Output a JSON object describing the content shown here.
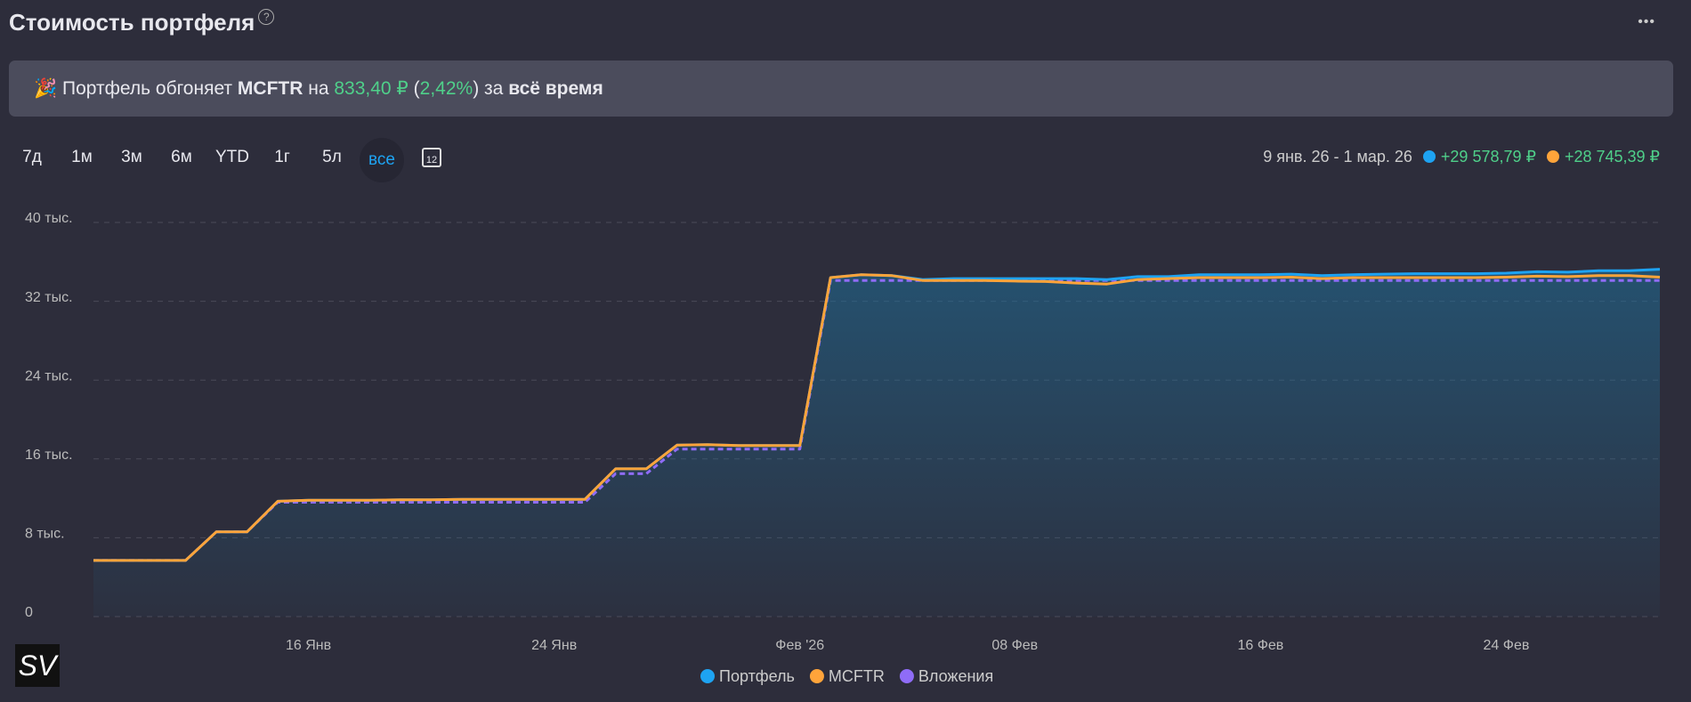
{
  "header": {
    "title": "Стоимость портфеля",
    "help": "?",
    "menu": "•••"
  },
  "banner": {
    "emoji": "🎉",
    "prefix": "Портфель обгоняет",
    "index": "MCFTR",
    "on": "на",
    "amount": "833,40 ₽",
    "pct_open": "(",
    "pct": "2,42%",
    "pct_close": ")",
    "for": "за",
    "period": "всё время"
  },
  "periods": {
    "items": [
      "7д",
      "1м",
      "3м",
      "6м",
      "YTD",
      "1г",
      "5л",
      "все"
    ],
    "active": 7,
    "calendar_day": "12"
  },
  "summary": {
    "range": "9 янв. 26 - 1 мар. 26",
    "portfolio_change": "+29 578,79 ₽",
    "index_change": "+28 745,39 ₽"
  },
  "watermark": "SV",
  "chart_data": {
    "type": "line",
    "x": [
      "2026-01-09",
      "2026-01-10",
      "2026-01-11",
      "2026-01-12",
      "2026-01-13",
      "2026-01-14",
      "2026-01-15",
      "2026-01-16",
      "2026-01-17",
      "2026-01-18",
      "2026-01-19",
      "2026-01-20",
      "2026-01-21",
      "2026-01-22",
      "2026-01-23",
      "2026-01-24",
      "2026-01-25",
      "2026-01-26",
      "2026-01-27",
      "2026-01-28",
      "2026-01-29",
      "2026-01-30",
      "2026-01-31",
      "2026-02-01",
      "2026-02-02",
      "2026-02-03",
      "2026-02-04",
      "2026-02-05",
      "2026-02-06",
      "2026-02-07",
      "2026-02-08",
      "2026-02-09",
      "2026-02-10",
      "2026-02-11",
      "2026-02-12",
      "2026-02-13",
      "2026-02-14",
      "2026-02-15",
      "2026-02-16",
      "2026-02-17",
      "2026-02-18",
      "2026-02-19",
      "2026-02-20",
      "2026-02-21",
      "2026-02-22",
      "2026-02-23",
      "2026-02-24",
      "2026-02-25",
      "2026-02-26",
      "2026-02-27",
      "2026-02-28",
      "2026-03-01"
    ],
    "xlim": [
      "2026-01-09",
      "2026-03-01"
    ],
    "xticks": [
      {
        "value": "2026-01-16",
        "label": "16 Янв"
      },
      {
        "value": "2026-01-24",
        "label": "24 Янв"
      },
      {
        "value": "2026-02-01",
        "label": "Фев '26"
      },
      {
        "value": "2026-02-08",
        "label": "08 Фев"
      },
      {
        "value": "2026-02-16",
        "label": "16 Фев"
      },
      {
        "value": "2026-02-24",
        "label": "24 Фев"
      }
    ],
    "ylim": [
      0,
      40000
    ],
    "yticks": [
      0,
      {
        "value": 8000,
        "label": "8 тыс."
      },
      {
        "value": 16000,
        "label": "16 тыс."
      },
      {
        "value": 24000,
        "label": "24 тыс."
      },
      {
        "value": 32000,
        "label": "32 тыс."
      },
      {
        "value": 40000,
        "label": "40 тыс."
      }
    ],
    "grid": true,
    "series": [
      {
        "name": "Портфель",
        "color": "#1ea3f2",
        "area": true,
        "values": [
          5700,
          5700,
          5700,
          5700,
          8600,
          8600,
          11700,
          11800,
          11800,
          11800,
          11850,
          11850,
          11900,
          11900,
          11900,
          11900,
          11900,
          15000,
          15000,
          17400,
          17450,
          17350,
          17350,
          17350,
          34400,
          34700,
          34600,
          34200,
          34300,
          34300,
          34300,
          34300,
          34300,
          34200,
          34500,
          34500,
          34700,
          34700,
          34700,
          34750,
          34600,
          34700,
          34750,
          34800,
          34800,
          34800,
          34850,
          35000,
          34950,
          35100,
          35100,
          35250
        ]
      },
      {
        "name": "MCFTR",
        "color": "#ffa43a",
        "values": [
          5700,
          5700,
          5700,
          5700,
          8600,
          8600,
          11700,
          11800,
          11800,
          11800,
          11850,
          11850,
          11900,
          11900,
          11900,
          11900,
          11900,
          15000,
          15000,
          17400,
          17450,
          17350,
          17350,
          17350,
          34400,
          34700,
          34600,
          34100,
          34100,
          34100,
          34050,
          34000,
          33850,
          33750,
          34200,
          34300,
          34400,
          34400,
          34400,
          34450,
          34300,
          34400,
          34400,
          34400,
          34400,
          34400,
          34450,
          34550,
          34500,
          34600,
          34600,
          34450
        ]
      },
      {
        "name": "Вложения",
        "color": "#8f6cf7",
        "dashed": true,
        "values": [
          5700,
          5700,
          5700,
          5700,
          8600,
          8600,
          11600,
          11600,
          11600,
          11600,
          11600,
          11600,
          11600,
          11600,
          11600,
          11600,
          11600,
          14500,
          14500,
          17000,
          17000,
          17000,
          17000,
          17000,
          34100,
          34100,
          34100,
          34100,
          34100,
          34100,
          34100,
          34100,
          34100,
          34100,
          34100,
          34100,
          34100,
          34100,
          34100,
          34100,
          34100,
          34100,
          34100,
          34100,
          34100,
          34100,
          34100,
          34100,
          34100,
          34100,
          34100,
          34100
        ]
      }
    ]
  }
}
